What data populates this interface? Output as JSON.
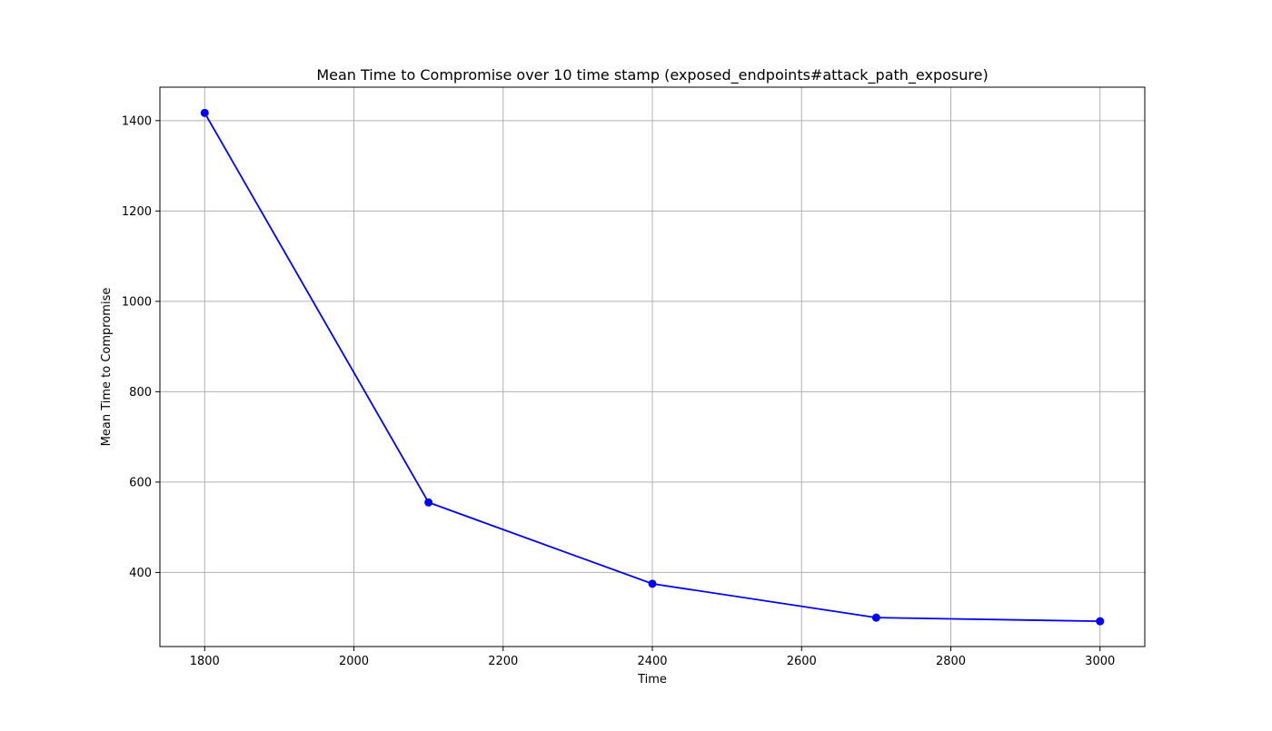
{
  "chart_data": {
    "type": "line",
    "title": "Mean Time to Compromise over 10 time stamp (exposed_endpoints#attack_path_exposure)",
    "xlabel": "Time",
    "ylabel": "Mean Time to Compromise",
    "xlim": [
      1740,
      3060
    ],
    "ylim": [
      236,
      1474
    ],
    "xticks": [
      1800,
      2000,
      2200,
      2400,
      2600,
      2800,
      3000
    ],
    "yticks": [
      400,
      600,
      800,
      1000,
      1200,
      1400
    ],
    "grid": true,
    "series": [
      {
        "color": "#0000ff",
        "marker": "circle",
        "x": [
          1800,
          2100,
          2400,
          2700,
          3000
        ],
        "y": [
          1417,
          555,
          375,
          300,
          292
        ]
      }
    ]
  }
}
